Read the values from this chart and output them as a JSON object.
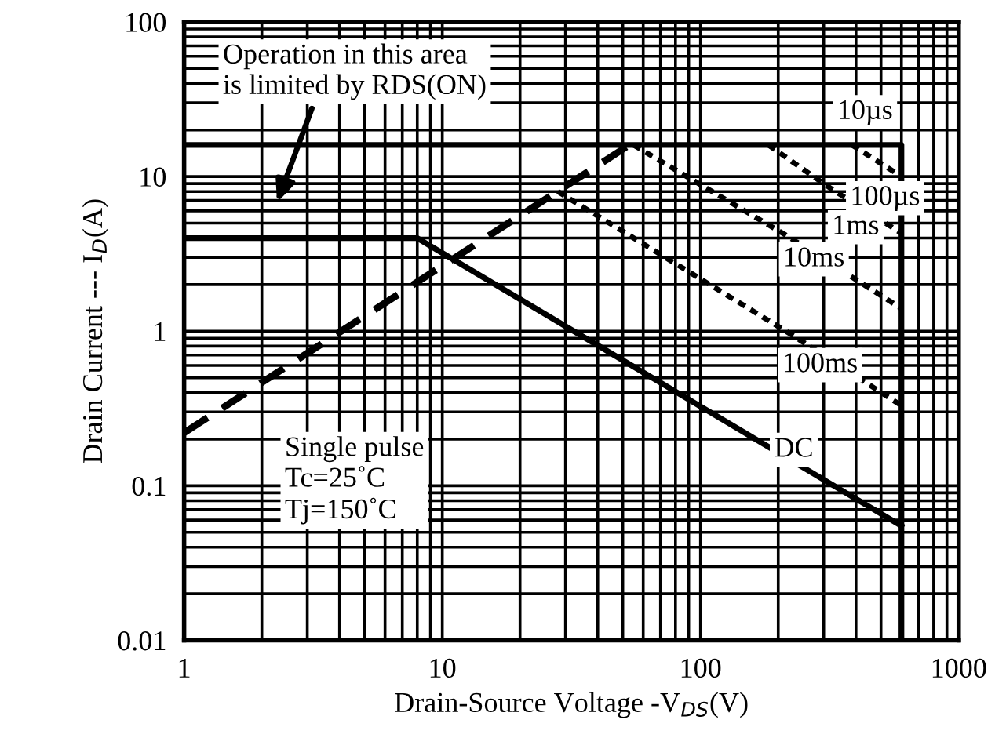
{
  "chart_data": {
    "type": "line",
    "xlabel": "Drain-Source Voltage -V$_{DS}$(V)",
    "ylabel": "Drain Current --- I$_{D}$(A)",
    "log": "xy",
    "xlim": [
      1,
      1000
    ],
    "ylim": [
      0.01,
      100
    ],
    "xticks": [
      1,
      10,
      100,
      1000
    ],
    "yticks": [
      0.01,
      0.1,
      1,
      10,
      100
    ],
    "grid": true,
    "marker": "none",
    "series": [
      {
        "color": "#000000",
        "line_style": "solid",
        "x": [
          1,
          600,
          600
        ],
        "values": [
          16,
          16,
          0.01
        ]
      },
      {
        "color": "#000000",
        "line_style": "dashed",
        "x": [
          1,
          53
        ],
        "values": [
          0.22,
          16
        ]
      },
      {
        "color": "#000000",
        "line_style": "dotted",
        "x": [
          386,
          600
        ],
        "values": [
          16,
          10
        ]
      },
      {
        "color": "#000000",
        "line_style": "dotted",
        "x": [
          183,
          322,
          600
        ],
        "values": [
          16,
          8.3,
          4.3
        ]
      },
      {
        "color": "#000000",
        "line_style": "dotted",
        "x": [
          55,
          213,
          600
        ],
        "values": [
          16,
          4.2,
          1.4
        ]
      },
      {
        "color": "#000000",
        "line_style": "dotted",
        "x": [
          28,
          225,
          600
        ],
        "values": [
          8,
          0.95,
          0.33
        ]
      },
      {
        "color": "#000000",
        "line_style": "solid",
        "x": [
          1,
          8,
          600
        ],
        "values": [
          4,
          4,
          0.055
        ]
      }
    ],
    "annotations": [
      "Operation in this area\nis limited by RDS(ON)",
      "10µs",
      "100µs",
      "1ms",
      "10ms",
      "100ms",
      "DC",
      "Single pulse\nTc=25˚C\nTj=150˚C"
    ]
  }
}
